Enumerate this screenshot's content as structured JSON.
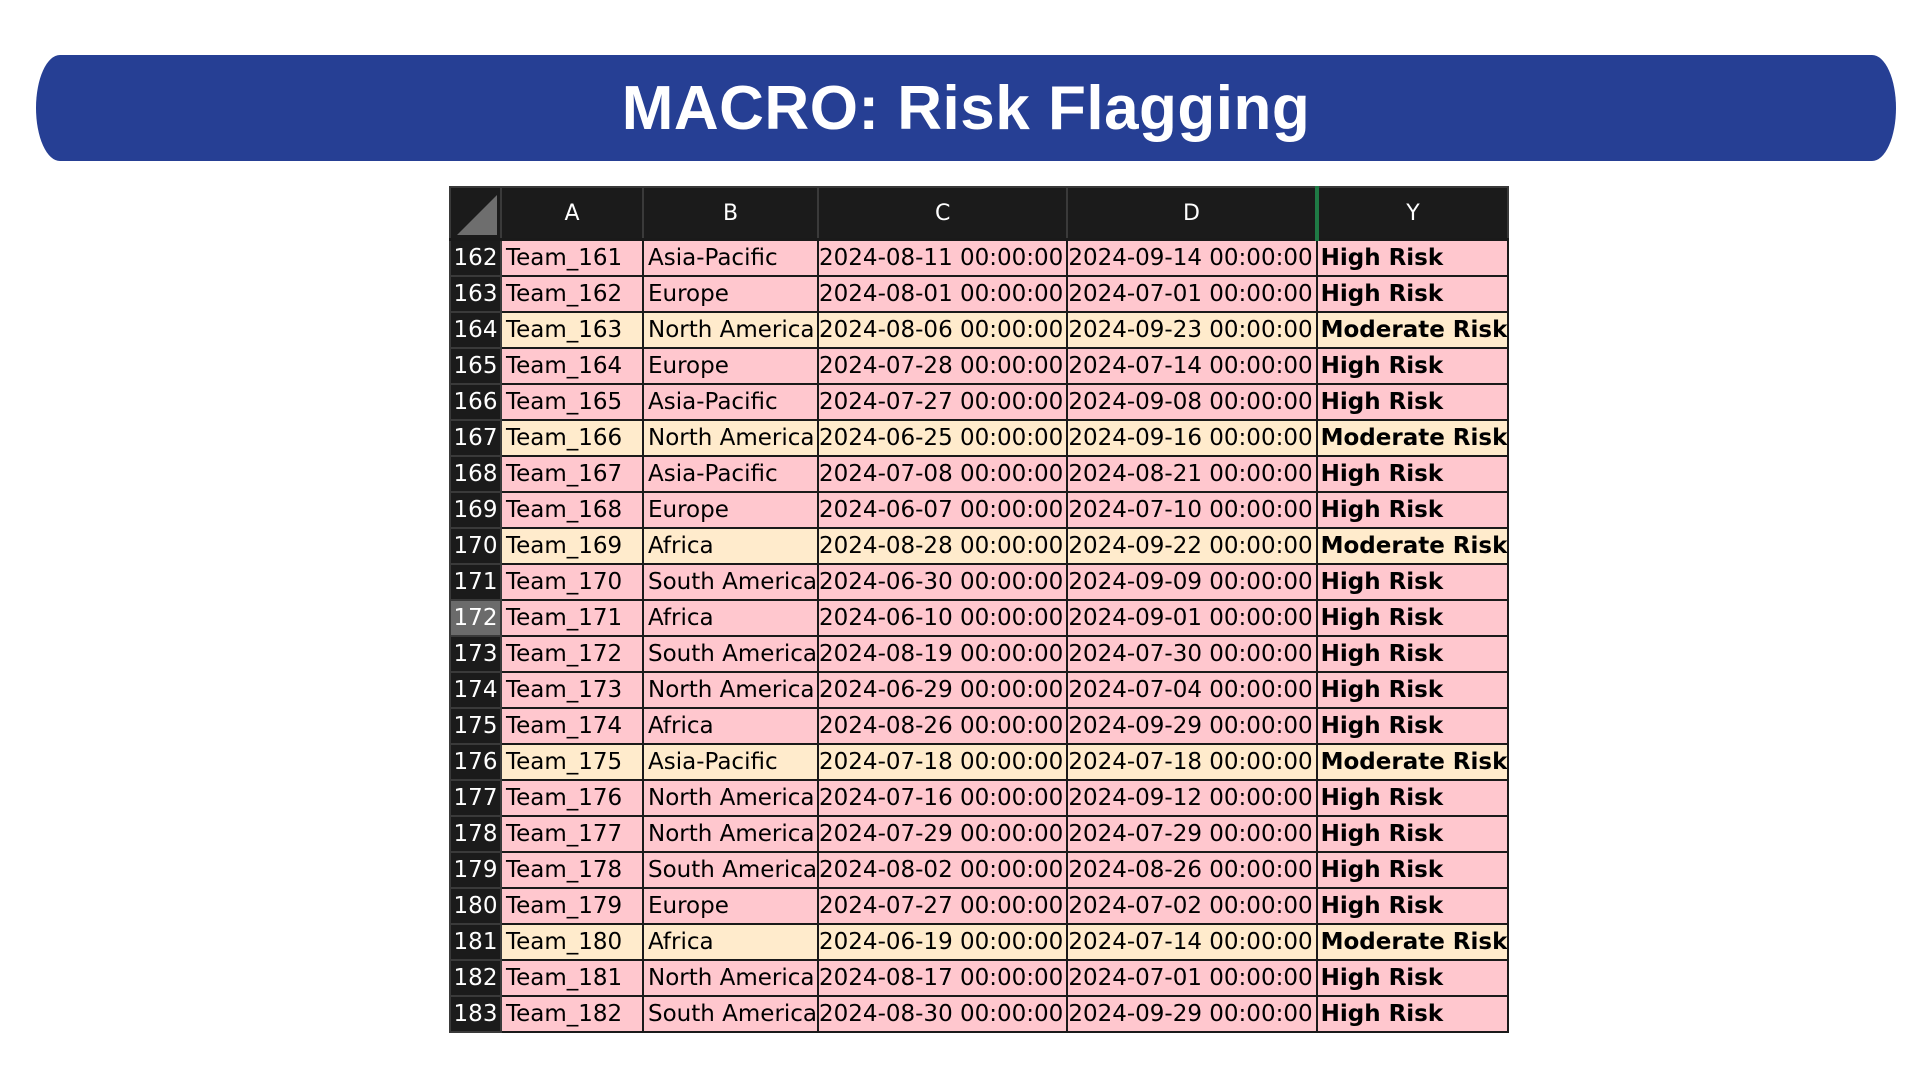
{
  "title": "MACRO: Risk Flagging",
  "colors": {
    "banner": "#263f94",
    "high_risk_fill": "#ffc7ce",
    "moderate_risk_fill": "#ffebcc",
    "header_fill": "#1b1b1b",
    "selected_row_header": "#6b6b6b",
    "column_separator": "#1f7a45"
  },
  "columns": [
    "A",
    "B",
    "C",
    "D",
    "Y"
  ],
  "selected_row": "172",
  "rows": [
    {
      "row": "162",
      "team": "Team_161",
      "region": "Asia-Pacific",
      "start": "2024-08-11 00:00:00",
      "end": "2024-09-14 00:00:00",
      "flag": "High Risk"
    },
    {
      "row": "163",
      "team": "Team_162",
      "region": "Europe",
      "start": "2024-08-01 00:00:00",
      "end": "2024-07-01 00:00:00",
      "flag": "High Risk"
    },
    {
      "row": "164",
      "team": "Team_163",
      "region": "North America",
      "start": "2024-08-06 00:00:00",
      "end": "2024-09-23 00:00:00",
      "flag": "Moderate Risk"
    },
    {
      "row": "165",
      "team": "Team_164",
      "region": "Europe",
      "start": "2024-07-28 00:00:00",
      "end": "2024-07-14 00:00:00",
      "flag": "High Risk"
    },
    {
      "row": "166",
      "team": "Team_165",
      "region": "Asia-Pacific",
      "start": "2024-07-27 00:00:00",
      "end": "2024-09-08 00:00:00",
      "flag": "High Risk"
    },
    {
      "row": "167",
      "team": "Team_166",
      "region": "North America",
      "start": "2024-06-25 00:00:00",
      "end": "2024-09-16 00:00:00",
      "flag": "Moderate Risk"
    },
    {
      "row": "168",
      "team": "Team_167",
      "region": "Asia-Pacific",
      "start": "2024-07-08 00:00:00",
      "end": "2024-08-21 00:00:00",
      "flag": "High Risk"
    },
    {
      "row": "169",
      "team": "Team_168",
      "region": "Europe",
      "start": "2024-06-07 00:00:00",
      "end": "2024-07-10 00:00:00",
      "flag": "High Risk"
    },
    {
      "row": "170",
      "team": "Team_169",
      "region": "Africa",
      "start": "2024-08-28 00:00:00",
      "end": "2024-09-22 00:00:00",
      "flag": "Moderate Risk"
    },
    {
      "row": "171",
      "team": "Team_170",
      "region": "South America",
      "start": "2024-06-30 00:00:00",
      "end": "2024-09-09 00:00:00",
      "flag": "High Risk"
    },
    {
      "row": "172",
      "team": "Team_171",
      "region": "Africa",
      "start": "2024-06-10 00:00:00",
      "end": "2024-09-01 00:00:00",
      "flag": "High Risk"
    },
    {
      "row": "173",
      "team": "Team_172",
      "region": "South America",
      "start": "2024-08-19 00:00:00",
      "end": "2024-07-30 00:00:00",
      "flag": "High Risk"
    },
    {
      "row": "174",
      "team": "Team_173",
      "region": "North America",
      "start": "2024-06-29 00:00:00",
      "end": "2024-07-04 00:00:00",
      "flag": "High Risk"
    },
    {
      "row": "175",
      "team": "Team_174",
      "region": "Africa",
      "start": "2024-08-26 00:00:00",
      "end": "2024-09-29 00:00:00",
      "flag": "High Risk"
    },
    {
      "row": "176",
      "team": "Team_175",
      "region": "Asia-Pacific",
      "start": "2024-07-18 00:00:00",
      "end": "2024-07-18 00:00:00",
      "flag": "Moderate Risk"
    },
    {
      "row": "177",
      "team": "Team_176",
      "region": "North America",
      "start": "2024-07-16 00:00:00",
      "end": "2024-09-12 00:00:00",
      "flag": "High Risk"
    },
    {
      "row": "178",
      "team": "Team_177",
      "region": "North America",
      "start": "2024-07-29 00:00:00",
      "end": "2024-07-29 00:00:00",
      "flag": "High Risk"
    },
    {
      "row": "179",
      "team": "Team_178",
      "region": "South America",
      "start": "2024-08-02 00:00:00",
      "end": "2024-08-26 00:00:00",
      "flag": "High Risk"
    },
    {
      "row": "180",
      "team": "Team_179",
      "region": "Europe",
      "start": "2024-07-27 00:00:00",
      "end": "2024-07-02 00:00:00",
      "flag": "High Risk"
    },
    {
      "row": "181",
      "team": "Team_180",
      "region": "Africa",
      "start": "2024-06-19 00:00:00",
      "end": "2024-07-14 00:00:00",
      "flag": "Moderate Risk"
    },
    {
      "row": "182",
      "team": "Team_181",
      "region": "North America",
      "start": "2024-08-17 00:00:00",
      "end": "2024-07-01 00:00:00",
      "flag": "High Risk"
    },
    {
      "row": "183",
      "team": "Team_182",
      "region": "South America",
      "start": "2024-08-30 00:00:00",
      "end": "2024-09-29 00:00:00",
      "flag": "High Risk"
    }
  ]
}
